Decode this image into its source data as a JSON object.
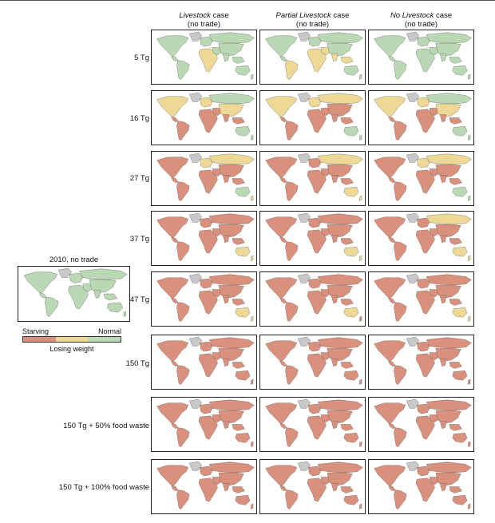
{
  "columns": [
    {
      "italic": "Livestock",
      "rest": " case",
      "sub": "(no trade)"
    },
    {
      "italic": "Partial Livestock",
      "rest": " case",
      "sub": "(no trade)"
    },
    {
      "italic": "No Livestock",
      "rest": " case",
      "sub": "(no trade)"
    }
  ],
  "rows": [
    {
      "label": "5 Tg",
      "levels": [
        0.15,
        0.22,
        0.12
      ]
    },
    {
      "label": "16 Tg",
      "levels": [
        0.45,
        0.52,
        0.42
      ]
    },
    {
      "label": "27 Tg",
      "levels": [
        0.58,
        0.62,
        0.55
      ]
    },
    {
      "label": "37 Tg",
      "levels": [
        0.68,
        0.7,
        0.66
      ]
    },
    {
      "label": "47 Tg",
      "levels": [
        0.76,
        0.78,
        0.74
      ]
    },
    {
      "label": "150 Tg",
      "levels": [
        0.92,
        0.93,
        0.91
      ]
    },
    {
      "label": "150 Tg + 50% food waste",
      "levels": [
        0.94,
        0.95,
        0.93
      ]
    },
    {
      "label": "150 Tg + 100% food waste",
      "levels": [
        0.95,
        0.96,
        0.94
      ]
    }
  ],
  "baseline": {
    "title": "2010, no trade",
    "level": 0.05
  },
  "legend": {
    "starving": "Starving",
    "normal": "Normal",
    "losing": "Losing weight",
    "colors": {
      "starving": "#d9917e",
      "losing": "#edd995",
      "normal": "#b9d8b3",
      "nodata": "#c8c8c8"
    }
  }
}
